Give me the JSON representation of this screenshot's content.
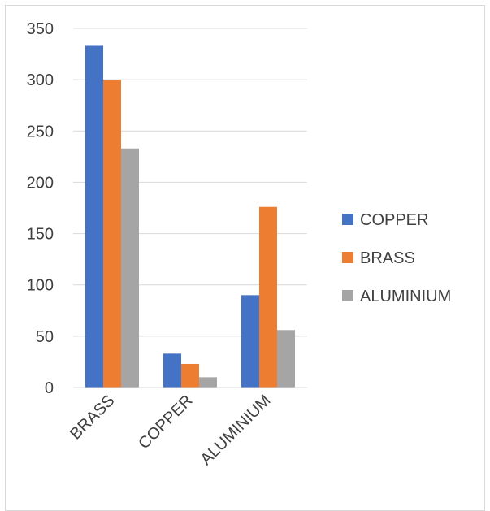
{
  "chart_data": {
    "type": "bar",
    "categories": [
      "BRASS",
      "COPPER",
      "ALUMINIUM"
    ],
    "series": [
      {
        "name": "COPPER",
        "color": "#4472C4",
        "values": [
          333,
          33,
          90
        ]
      },
      {
        "name": "BRASS",
        "color": "#ED7D31",
        "values": [
          300,
          23,
          176
        ]
      },
      {
        "name": "ALUMINIUM",
        "color": "#A5A5A5",
        "values": [
          233,
          10,
          56
        ]
      }
    ],
    "ylim": [
      0,
      350
    ],
    "yticks": [
      0,
      50,
      100,
      150,
      200,
      250,
      300,
      350
    ],
    "grid": true,
    "legend": "right"
  }
}
